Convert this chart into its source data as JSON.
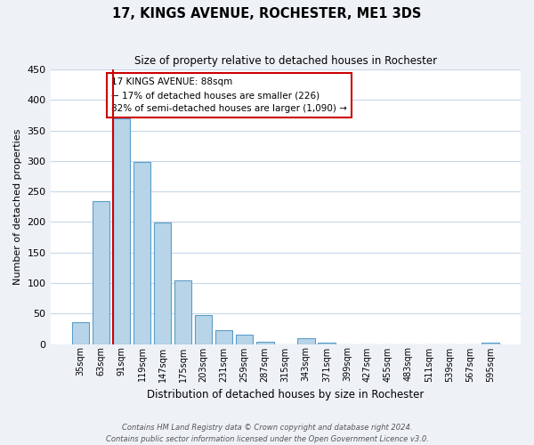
{
  "title": "17, KINGS AVENUE, ROCHESTER, ME1 3DS",
  "subtitle": "Size of property relative to detached houses in Rochester",
  "bar_labels": [
    "35sqm",
    "63sqm",
    "91sqm",
    "119sqm",
    "147sqm",
    "175sqm",
    "203sqm",
    "231sqm",
    "259sqm",
    "287sqm",
    "315sqm",
    "343sqm",
    "371sqm",
    "399sqm",
    "427sqm",
    "455sqm",
    "483sqm",
    "511sqm",
    "539sqm",
    "567sqm",
    "595sqm"
  ],
  "bar_values": [
    36,
    234,
    370,
    298,
    199,
    105,
    47,
    23,
    15,
    4,
    0,
    10,
    2,
    0,
    0,
    0,
    0,
    0,
    0,
    0,
    2
  ],
  "bar_color": "#b8d4e8",
  "bar_edge_color": "#5a9ec9",
  "bar_edge_width": 0.8,
  "property_line_color": "#cc0000",
  "ylabel": "Number of detached properties",
  "xlabel": "Distribution of detached houses by size in Rochester",
  "ylim": [
    0,
    450
  ],
  "yticks": [
    0,
    50,
    100,
    150,
    200,
    250,
    300,
    350,
    400,
    450
  ],
  "annotation_title": "17 KINGS AVENUE: 88sqm",
  "annotation_line1": "← 17% of detached houses are smaller (226)",
  "annotation_line2": "82% of semi-detached houses are larger (1,090) →",
  "footer_line1": "Contains HM Land Registry data © Crown copyright and database right 2024.",
  "footer_line2": "Contains public sector information licensed under the Open Government Licence v3.0.",
  "background_color": "#eef2f7",
  "plot_bg_color": "#ffffff",
  "grid_color": "#c8d8e8"
}
